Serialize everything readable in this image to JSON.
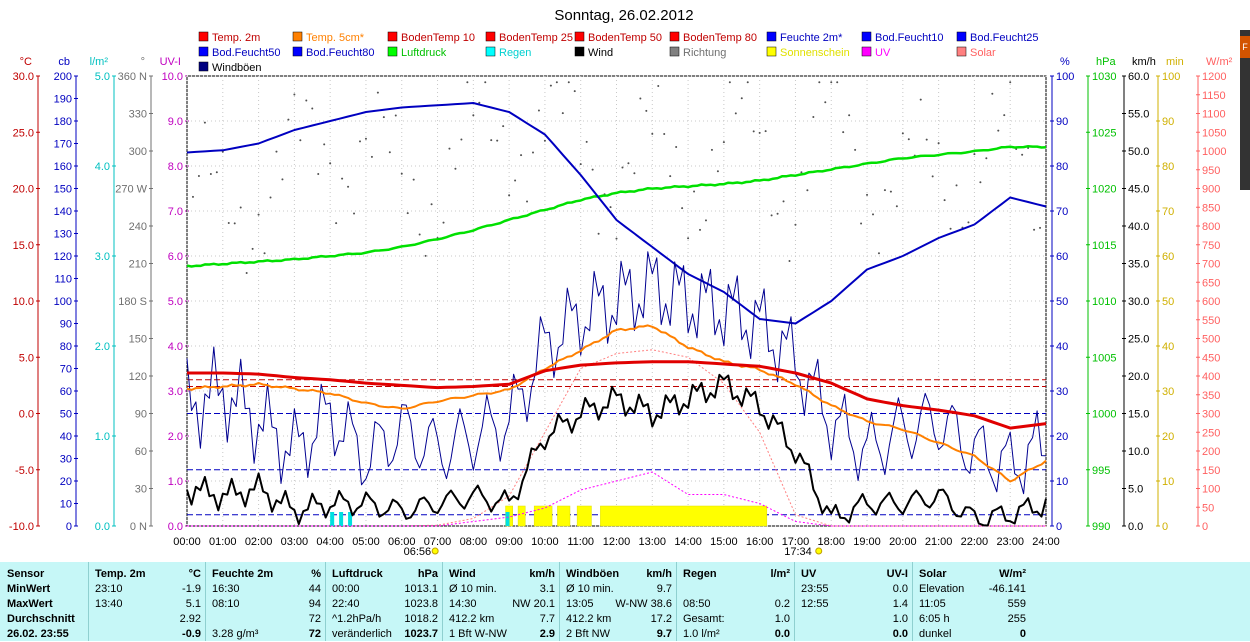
{
  "chart_data": {
    "type": "line",
    "title": "Sonntag, 26.02.2012",
    "x_ticks": [
      "00:00",
      "01:00",
      "02:00",
      "03:00",
      "04:00",
      "05:00",
      "06:00",
      "07:00",
      "08:00",
      "09:00",
      "10:00",
      "11:00",
      "12:00",
      "13:00",
      "14:00",
      "15:00",
      "16:00",
      "17:00",
      "18:00",
      "19:00",
      "20:00",
      "21:00",
      "22:00",
      "23:00",
      "24:00"
    ],
    "sunrise": "06:56",
    "sunset": "17:34",
    "legend": [
      {
        "name": "Temp. 2m",
        "color": "#ff0000"
      },
      {
        "name": "Temp. 5cm*",
        "color": "#ff8000"
      },
      {
        "name": "BodenTemp 10",
        "color": "#ff0000"
      },
      {
        "name": "BodenTemp 25",
        "color": "#ff0000"
      },
      {
        "name": "BodenTemp 50",
        "color": "#ff0000"
      },
      {
        "name": "BodenTemp 80",
        "color": "#ff0000"
      },
      {
        "name": "Feuchte 2m*",
        "color": "#0000ff"
      },
      {
        "name": "Bod.Feucht10",
        "color": "#0000ff"
      },
      {
        "name": "Bod.Feucht25",
        "color": "#0000ff"
      },
      {
        "name": "Bod.Feucht50",
        "color": "#0000ff"
      },
      {
        "name": "Bod.Feucht80",
        "color": "#0000ff"
      },
      {
        "name": "Luftdruck",
        "color": "#00ff00"
      },
      {
        "name": "Regen",
        "color": "#00ffff"
      },
      {
        "name": "Wind",
        "color": "#000000"
      },
      {
        "name": "Richtung",
        "color": "#808080"
      },
      {
        "name": "Sonnenschein",
        "color": "#ffff00"
      },
      {
        "name": "UV",
        "color": "#ff00ff"
      },
      {
        "name": "Solar",
        "color": "#ff8080"
      },
      {
        "name": "Windböen",
        "color": "#000080"
      }
    ],
    "axes": [
      {
        "unit": "°C",
        "min": -10,
        "max": 30,
        "ticks": [
          "30.0",
          "25.0",
          "20.0",
          "15.0",
          "10.0",
          "5.0",
          "0.0",
          "-5.0",
          "-10.0"
        ],
        "color": "#ff0000"
      },
      {
        "unit": "cb",
        "min": 0,
        "max": 200,
        "ticks": [
          "200",
          "190",
          "180",
          "170",
          "160",
          "150",
          "140",
          "130",
          "120",
          "110",
          "100",
          "90",
          "80",
          "70",
          "60",
          "50",
          "40",
          "30",
          "20",
          "10",
          "0"
        ],
        "color": "#0000ff"
      },
      {
        "unit": "l/m²",
        "min": 0,
        "max": 5,
        "ticks": [
          "5.0",
          "4.0",
          "3.0",
          "2.0",
          "1.0",
          "0.0"
        ],
        "color": "#00c0c0"
      },
      {
        "unit": "°",
        "min": 0,
        "max": 360,
        "ticks": [
          "360 N",
          "330",
          "300",
          "270 W",
          "240",
          "210",
          "180 S",
          "150",
          "120",
          "90",
          "60",
          "30",
          "0 N"
        ],
        "color": "#808080"
      },
      {
        "unit": "UV-I",
        "min": 0,
        "max": 10,
        "ticks": [
          "10.0",
          "9.0",
          "8.0",
          "7.0",
          "6.0",
          "5.0",
          "4.0",
          "3.0",
          "2.0",
          "1.0",
          "0.0"
        ],
        "color": "#ff00ff"
      },
      {
        "unit": "%",
        "min": 0,
        "max": 100,
        "ticks": [
          "100",
          "90",
          "80",
          "70",
          "60",
          "50",
          "40",
          "30",
          "20",
          "10",
          "0"
        ],
        "color": "#0000ff"
      },
      {
        "unit": "hPa",
        "min": 990,
        "max": 1030,
        "ticks": [
          "1030",
          "1025",
          "1020",
          "1015",
          "1010",
          "1005",
          "1000",
          "995",
          "990"
        ],
        "color": "#00c000"
      },
      {
        "unit": "km/h",
        "min": 0,
        "max": 60,
        "ticks": [
          "60.0",
          "55.0",
          "50.0",
          "45.0",
          "40.0",
          "35.0",
          "30.0",
          "25.0",
          "20.0",
          "15.0",
          "10.0",
          "5.0",
          "0.0"
        ],
        "color": "#000000"
      },
      {
        "unit": "min",
        "min": 0,
        "max": 100,
        "ticks": [
          "100",
          "90",
          "80",
          "70",
          "60",
          "50",
          "40",
          "30",
          "20",
          "10",
          "0"
        ],
        "color": "#e0c000"
      },
      {
        "unit": "W/m²",
        "min": 0,
        "max": 1200,
        "ticks": [
          "1200",
          "1150",
          "1100",
          "1050",
          "1000",
          "950",
          "900",
          "850",
          "800",
          "750",
          "700",
          "650",
          "600",
          "550",
          "500",
          "450",
          "400",
          "350",
          "300",
          "250",
          "200",
          "150",
          "100",
          "50",
          "0"
        ],
        "color": "#ff6060"
      }
    ],
    "series": [
      {
        "name": "Feuchte 2m*",
        "unit": "%",
        "x": [
          0,
          1,
          2,
          3,
          4,
          5,
          6,
          7,
          8,
          9,
          10,
          11,
          12,
          13,
          14,
          15,
          16,
          17,
          18,
          19,
          20,
          21,
          22,
          23,
          24
        ],
        "y": [
          83,
          83.5,
          85,
          88,
          90,
          92,
          93,
          93.5,
          94,
          92,
          87,
          78,
          68,
          62,
          56,
          52,
          46,
          45,
          50,
          57,
          60,
          64,
          67,
          73,
          71
        ]
      },
      {
        "name": "Luftdruck",
        "unit": "hPa",
        "x": [
          0,
          1,
          2,
          3,
          4,
          5,
          6,
          7,
          8,
          9,
          10,
          11,
          12,
          13,
          14,
          15,
          16,
          17,
          18,
          19,
          20,
          21,
          22,
          23,
          24
        ],
        "y": [
          1013.1,
          1013.3,
          1013.5,
          1013.7,
          1014.0,
          1014.3,
          1014.8,
          1015.5,
          1016.3,
          1017.2,
          1018.1,
          1019.0,
          1019.6,
          1020.0,
          1020.2,
          1020.4,
          1020.7,
          1021.2,
          1021.7,
          1022.2,
          1022.7,
          1023.0,
          1023.3,
          1023.7,
          1023.7
        ]
      },
      {
        "name": "Temp. 2m",
        "unit": "°C",
        "x": [
          0,
          1,
          2,
          3,
          4,
          5,
          6,
          7,
          8,
          9,
          10,
          11,
          12,
          13,
          14,
          15,
          16,
          17,
          18,
          19,
          20,
          21,
          22,
          23,
          24
        ],
        "y": [
          3.6,
          3.6,
          3.5,
          3.2,
          3.0,
          2.7,
          2.5,
          2.3,
          2.4,
          2.6,
          3.8,
          4.3,
          4.5,
          4.6,
          4.6,
          4.4,
          4.2,
          3.6,
          2.7,
          1.3,
          0.7,
          0.3,
          -0.2,
          -1.3,
          -0.9
        ]
      },
      {
        "name": "Temp. 5cm*",
        "unit": "°C",
        "x": [
          0,
          1,
          2,
          3,
          4,
          5,
          6,
          7,
          8,
          9,
          10,
          11,
          12,
          13,
          14,
          15,
          16,
          17,
          18,
          19,
          20,
          21,
          22,
          23,
          24
        ],
        "y": [
          2.2,
          2.4,
          2.6,
          2.2,
          1.8,
          0.9,
          0.4,
          1.1,
          1.6,
          2.1,
          4.0,
          5.6,
          7.4,
          7.8,
          5.9,
          4.6,
          3.9,
          2.6,
          0.7,
          -0.7,
          -1.4,
          -2.6,
          -3.8,
          -6.0,
          -4.2
        ]
      },
      {
        "name": "Windböen",
        "unit": "km/h",
        "x": [
          0,
          1,
          2,
          3,
          4,
          5,
          6,
          7,
          8,
          9,
          10,
          11,
          12,
          13,
          14,
          15,
          16,
          17,
          18,
          19,
          20,
          21,
          22,
          23,
          24
        ],
        "y": [
          16,
          18,
          14,
          10,
          15,
          9,
          13,
          10,
          12,
          14,
          24,
          28,
          30,
          32,
          30,
          29,
          27,
          22,
          14,
          10,
          13,
          14,
          10,
          8,
          11
        ]
      },
      {
        "name": "Wind",
        "unit": "km/h",
        "x": [
          0,
          1,
          2,
          3,
          4,
          5,
          6,
          7,
          8,
          9,
          10,
          11,
          12,
          13,
          14,
          15,
          16,
          17,
          18,
          19,
          20,
          21,
          22,
          23,
          24
        ],
        "y": [
          5,
          4,
          5,
          2,
          3,
          3,
          2,
          3,
          4,
          3,
          12,
          15,
          17,
          15,
          17,
          19,
          16,
          10,
          1,
          3,
          3,
          4,
          1,
          1.5,
          3
        ]
      },
      {
        "name": "Solar",
        "unit": "W/m²",
        "x": [
          0,
          1,
          2,
          3,
          4,
          5,
          6,
          7,
          8,
          9,
          10,
          11,
          12,
          13,
          14,
          15,
          16,
          17,
          18,
          19,
          20,
          21,
          22,
          23,
          24
        ],
        "y": [
          0,
          0,
          0,
          0,
          0,
          0,
          0,
          2,
          20,
          80,
          250,
          420,
          460,
          470,
          450,
          380,
          250,
          30,
          0,
          0,
          0,
          0,
          0,
          0,
          0
        ]
      },
      {
        "name": "UV",
        "unit": "UV-I",
        "x": [
          0,
          1,
          2,
          3,
          4,
          5,
          6,
          7,
          8,
          9,
          10,
          11,
          12,
          13,
          14,
          15,
          16,
          17,
          18,
          19,
          20,
          21,
          22,
          23,
          24
        ],
        "y": [
          0,
          0,
          0,
          0,
          0,
          0,
          0,
          0,
          0.1,
          0.2,
          0.4,
          0.8,
          1.0,
          1.2,
          0.7,
          0.7,
          0.5,
          0.1,
          0,
          0,
          0,
          0,
          0,
          0,
          0
        ]
      },
      {
        "name": "Richtung",
        "unit": "°",
        "x": [
          0,
          1,
          2,
          3,
          4,
          5,
          6,
          7,
          8,
          9,
          10,
          11,
          12,
          13,
          14,
          15,
          16,
          17,
          18,
          19,
          20,
          21,
          22,
          23,
          24
        ],
        "y": [
          260,
          250,
          270,
          285,
          310,
          300,
          265,
          280,
          300,
          320,
          320,
          300,
          290,
          290,
          285,
          300,
          310,
          270,
          330,
          290,
          270,
          280,
          300,
          290,
          270
        ]
      }
    ],
    "rain_hours": [
      4.0,
      4.25,
      4.5,
      8.9
    ],
    "sunshine": [
      [
        8.9,
        9.1
      ],
      [
        9.25,
        9.45
      ],
      [
        9.7,
        10.2
      ],
      [
        10.35,
        10.7
      ],
      [
        10.9,
        11.3
      ],
      [
        11.55,
        16.2
      ]
    ]
  },
  "table": {
    "sensor": {
      "header": "Sensor",
      "rows": [
        "MinWert",
        "MaxWert",
        "Durchschnitt",
        "26.02. 23:55"
      ]
    },
    "temp": {
      "header": "Temp. 2m",
      "unit": "°C",
      "rows": [
        [
          "23:10",
          "-1.9"
        ],
        [
          "13:40",
          "5.1"
        ],
        [
          "",
          "2.92"
        ],
        [
          "",
          "-0.9"
        ]
      ]
    },
    "humidity": {
      "header": "Feuchte 2m",
      "unit": "%",
      "rows": [
        [
          "16:30",
          "44"
        ],
        [
          "08:10",
          "94"
        ],
        [
          "",
          "72"
        ],
        [
          "3.28 g/m³",
          "72"
        ]
      ]
    },
    "pressure": {
      "header": "Luftdruck",
      "unit": "hPa",
      "rows": [
        [
          "00:00",
          "1013.1"
        ],
        [
          "22:40",
          "1023.8"
        ],
        [
          "^1.2hPa/h",
          "1018.2"
        ],
        [
          "veränderlich",
          "1023.7"
        ]
      ]
    },
    "wind": {
      "header": "Wind",
      "unit": "km/h",
      "rows": [
        [
          "Ø 10 min.",
          "3.1"
        ],
        [
          "14:30",
          "NW 20.1"
        ],
        [
          "412.2 km",
          "7.7"
        ],
        [
          "1 Bft W-NW",
          "2.9"
        ]
      ]
    },
    "gusts": {
      "header": "Windböen",
      "unit": "km/h",
      "rows": [
        [
          "Ø 10 min.",
          "9.7"
        ],
        [
          "13:05",
          "W-NW 38.6"
        ],
        [
          "412.2 km",
          "17.2"
        ],
        [
          "2 Bft NW",
          "9.7"
        ]
      ]
    },
    "rain": {
      "header": "Regen",
      "unit": "l/m²",
      "rows": [
        [
          "",
          ""
        ],
        [
          "08:50",
          "0.2"
        ],
        [
          "Gesamt:",
          "1.0"
        ],
        [
          "1.0 l/m²",
          "0.0"
        ]
      ]
    },
    "uv": {
      "header": "UV",
      "unit": "UV-I",
      "rows": [
        [
          "23:55",
          "0.0"
        ],
        [
          "12:55",
          "1.4"
        ],
        [
          "",
          "1.0"
        ],
        [
          "",
          "0.0"
        ]
      ]
    },
    "solar": {
      "header": "Solar",
      "unit": "W/m²",
      "rows": [
        [
          "Elevation",
          "-46.141"
        ],
        [
          "11:05",
          "559"
        ],
        [
          "6:05 h",
          "255"
        ],
        [
          "dunkel",
          "0"
        ]
      ]
    }
  },
  "edge_button_label": "F"
}
